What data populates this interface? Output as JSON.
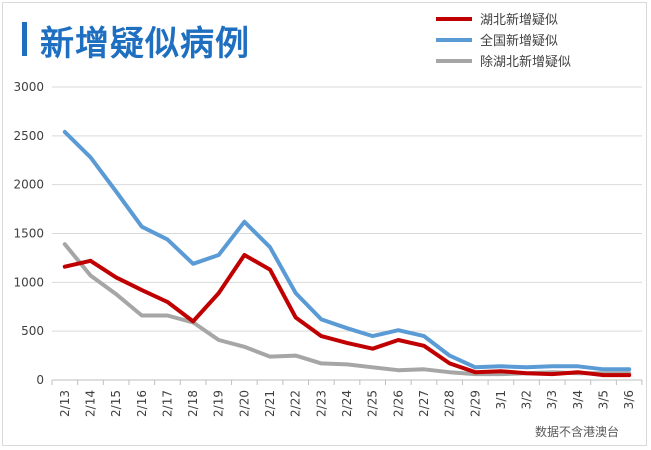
{
  "title": "新增疑似病例",
  "source_note": "数据不含港澳台",
  "chart_data": {
    "type": "line",
    "title": "新增疑似病例",
    "categories": [
      "2/13",
      "2/14",
      "2/15",
      "2/16",
      "2/17",
      "2/18",
      "2/19",
      "2/20",
      "2/21",
      "2/22",
      "2/23",
      "2/24",
      "2/25",
      "2/26",
      "2/27",
      "2/28",
      "2/29",
      "3/1",
      "3/2",
      "3/3",
      "3/4",
      "3/5",
      "3/6"
    ],
    "yticks": [
      "0",
      "500",
      "1000",
      "1500",
      "2000",
      "2500",
      "3000"
    ],
    "ylim": [
      0,
      3000
    ],
    "grid": true,
    "legend_position": "top-right",
    "series": [
      {
        "name": "湖北新增疑似",
        "color": "#c00000",
        "values": [
          1160,
          1220,
          1050,
          920,
          800,
          600,
          890,
          1280,
          1130,
          640,
          450,
          380,
          320,
          410,
          350,
          170,
          80,
          90,
          70,
          60,
          80,
          50,
          50
        ]
      },
      {
        "name": "全国新增疑似",
        "color": "#5b9bd5",
        "values": [
          2540,
          2280,
          1930,
          1570,
          1440,
          1190,
          1280,
          1620,
          1360,
          890,
          620,
          530,
          450,
          510,
          450,
          250,
          130,
          140,
          130,
          140,
          140,
          110,
          110
        ]
      },
      {
        "name": "除湖北新增疑似",
        "color": "#a6a6a6",
        "values": [
          1390,
          1070,
          880,
          660,
          660,
          590,
          410,
          340,
          240,
          250,
          170,
          160,
          130,
          100,
          110,
          80,
          60,
          60,
          70,
          80,
          70,
          70,
          70
        ]
      }
    ]
  }
}
